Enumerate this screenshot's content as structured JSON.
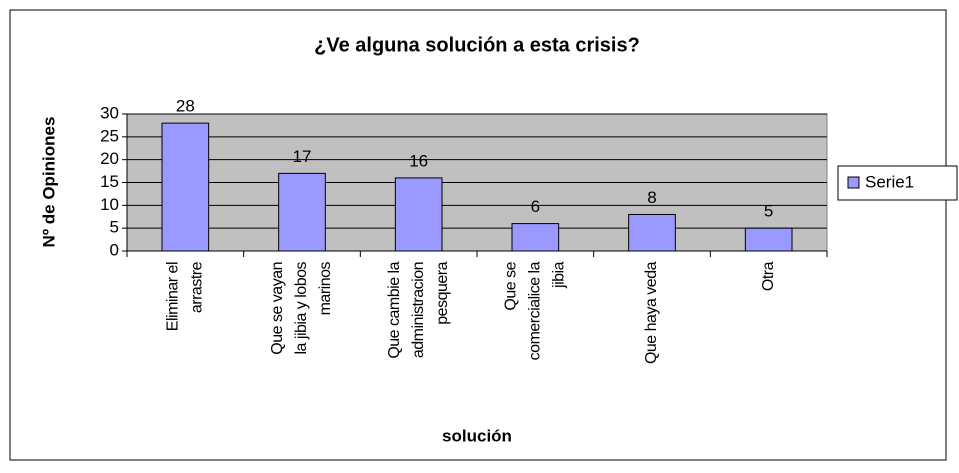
{
  "chart_data": {
    "type": "bar",
    "title": "¿Ve alguna solución a esta crisis?",
    "x_label": "solución",
    "y_label": "Nº de Opiniones",
    "categories": [
      [
        "Eliminar el",
        "arrastre"
      ],
      [
        "Que se vayan",
        "la jibia y lobos",
        "marinos"
      ],
      [
        "Que cambie la",
        "administracion",
        "pesquera"
      ],
      [
        "Que se",
        "comercialice la",
        "jibia"
      ],
      [
        "Que haya veda"
      ],
      [
        "Otra"
      ]
    ],
    "series": [
      {
        "name": "Serie1",
        "color": "#9999ff",
        "values": [
          28,
          17,
          16,
          6,
          8,
          5
        ]
      }
    ],
    "ylim": [
      0,
      30
    ],
    "yticks": [
      0,
      5,
      10,
      15,
      20,
      25,
      30
    ],
    "grid": true,
    "legend": "right"
  }
}
